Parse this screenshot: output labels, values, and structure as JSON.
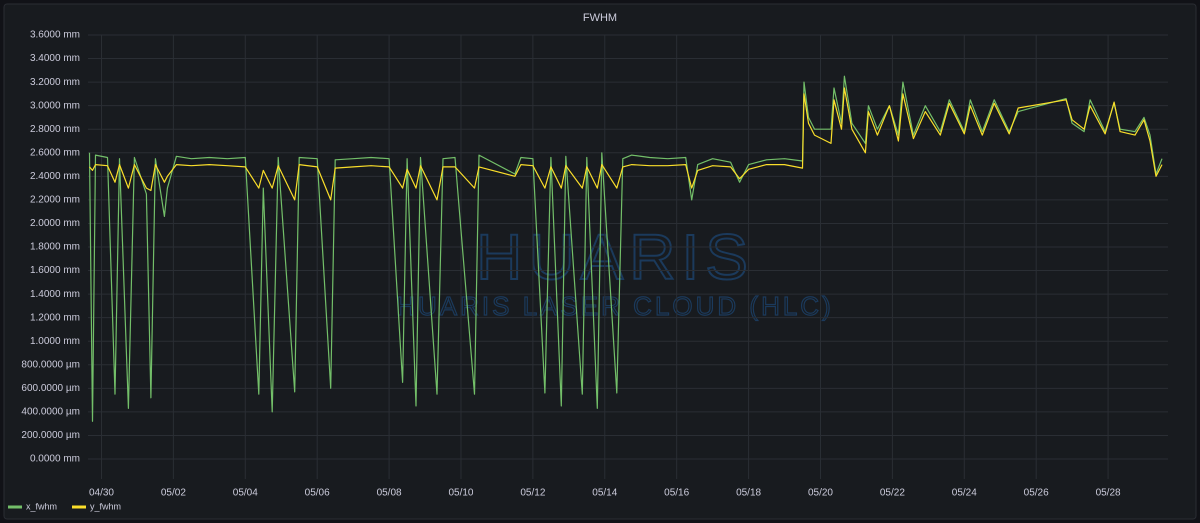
{
  "chart_data": {
    "type": "line",
    "title": "FWHM",
    "watermark": {
      "main": "HUARIS",
      "sub": "HUARIS LASER CLOUD (HLC)"
    },
    "x": [
      "04/29 16:00",
      "04/29 18:00",
      "04/29 20:00",
      "04/30 04:00",
      "04/30 09:00",
      "04/30 12:00",
      "04/30 18:00",
      "04/30 22:00",
      "05/01 06:00",
      "05/01 09:00",
      "05/01 12:00",
      "05/01 18:00",
      "05/01 20:00",
      "05/02 02:00",
      "05/02 12:00",
      "05/03 00:00",
      "05/03 12:00",
      "05/04 00:00",
      "05/04 09:00",
      "05/04 12:00",
      "05/04 18:00",
      "05/04 22:00",
      "05/05 09:00",
      "05/05 12:00",
      "05/06 00:00",
      "05/06 09:00",
      "05/06 12:00",
      "05/07 00:00",
      "05/07 12:00",
      "05/08 00:00",
      "05/08 09:00",
      "05/08 12:00",
      "05/08 18:00",
      "05/08 21:00",
      "05/09 08:00",
      "05/09 12:00",
      "05/09 20:00",
      "05/10 09:00",
      "05/10 12:00",
      "05/11 12:00",
      "05/11 16:00",
      "05/12 00:00",
      "05/12 08:00",
      "05/12 12:00",
      "05/12 19:00",
      "05/12 22:00",
      "05/13 09:00",
      "05/13 12:00",
      "05/13 19:00",
      "05/13 22:00",
      "05/14 08:00",
      "05/14 12:00",
      "05/14 18:00",
      "05/15 06:00",
      "05/15 18:00",
      "05/16 06:00",
      "05/16 10:00",
      "05/16 14:00",
      "05/17 00:00",
      "05/17 12:00",
      "05/17 18:00",
      "05/18 00:00",
      "05/18 12:00",
      "05/19 00:00",
      "05/19 12:00",
      "05/19 13:00",
      "05/19 16:00",
      "05/19 20:00",
      "05/20 07:00",
      "05/20 09:00",
      "05/20 14:00",
      "05/20 16:00",
      "05/20 21:00",
      "05/21 06:00",
      "05/21 08:00",
      "05/21 14:00",
      "05/21 22:00",
      "05/22 04:00",
      "05/22 07:00",
      "05/22 14:00",
      "05/22 22:00",
      "05/23 08:00",
      "05/23 14:00",
      "05/24 00:00",
      "05/24 04:00",
      "05/24 12:00",
      "05/24 20:00",
      "05/25 06:00",
      "05/25 12:00",
      "05/26 20:00",
      "05/27 00:00",
      "05/27 08:00",
      "05/27 12:00",
      "05/27 22:00",
      "05/28 04:00",
      "05/28 08:00",
      "05/28 18:00",
      "05/29 00:00",
      "05/29 04:00",
      "05/29 08:00",
      "05/29 12:00"
    ],
    "series": [
      {
        "name": "x_fwhm",
        "color": "#73bf69",
        "values": [
          2.6,
          0.32,
          2.58,
          2.56,
          0.55,
          2.55,
          0.43,
          2.56,
          2.25,
          0.52,
          2.55,
          2.06,
          2.3,
          2.57,
          2.55,
          2.56,
          2.55,
          2.56,
          0.55,
          2.3,
          0.4,
          2.56,
          0.57,
          2.56,
          2.55,
          0.6,
          2.54,
          2.55,
          2.56,
          2.55,
          0.65,
          2.55,
          0.45,
          2.56,
          0.55,
          2.55,
          2.56,
          0.55,
          2.58,
          2.42,
          2.56,
          2.55,
          0.56,
          2.56,
          0.45,
          2.57,
          0.55,
          2.56,
          0.43,
          2.6,
          0.56,
          2.55,
          2.58,
          2.56,
          2.55,
          2.56,
          2.2,
          2.5,
          2.55,
          2.52,
          2.35,
          2.5,
          2.54,
          2.55,
          2.53,
          3.2,
          2.9,
          2.8,
          2.8,
          3.15,
          2.85,
          3.25,
          2.85,
          2.68,
          3.0,
          2.8,
          3.0,
          2.75,
          3.2,
          2.75,
          3.0,
          2.78,
          3.05,
          2.78,
          3.05,
          2.78,
          3.05,
          2.78,
          2.95,
          3.06,
          2.85,
          2.78,
          3.05,
          2.78,
          3.02,
          2.8,
          2.78,
          2.9,
          2.75,
          2.42,
          2.55
        ]
      },
      {
        "name": "y_fwhm",
        "color": "#fade2a",
        "values": [
          2.48,
          2.45,
          2.5,
          2.49,
          2.35,
          2.5,
          2.3,
          2.5,
          2.3,
          2.28,
          2.5,
          2.35,
          2.4,
          2.5,
          2.49,
          2.5,
          2.49,
          2.48,
          2.3,
          2.45,
          2.3,
          2.49,
          2.2,
          2.5,
          2.48,
          2.2,
          2.47,
          2.48,
          2.49,
          2.48,
          2.3,
          2.46,
          2.3,
          2.49,
          2.2,
          2.48,
          2.48,
          2.3,
          2.48,
          2.4,
          2.5,
          2.49,
          2.3,
          2.48,
          2.3,
          2.49,
          2.3,
          2.48,
          2.3,
          2.5,
          2.3,
          2.48,
          2.5,
          2.49,
          2.49,
          2.5,
          2.3,
          2.45,
          2.49,
          2.48,
          2.38,
          2.46,
          2.5,
          2.5,
          2.47,
          3.1,
          2.85,
          2.75,
          2.68,
          3.05,
          2.8,
          3.15,
          2.8,
          2.6,
          2.95,
          2.75,
          3.0,
          2.7,
          3.1,
          2.72,
          2.95,
          2.75,
          3.02,
          2.76,
          3.0,
          2.75,
          3.02,
          2.76,
          2.98,
          3.05,
          2.88,
          2.8,
          3.0,
          2.76,
          3.03,
          2.78,
          2.75,
          2.88,
          2.7,
          2.4,
          2.5
        ]
      }
    ],
    "xlim": [
      "04/29 15:00",
      "05/29 16:00"
    ],
    "xticks": [
      "04/30",
      "05/02",
      "05/04",
      "05/06",
      "05/08",
      "05/10",
      "05/12",
      "05/14",
      "05/16",
      "05/18",
      "05/20",
      "05/22",
      "05/24",
      "05/26",
      "05/28"
    ],
    "ylim": [
      0,
      3.6
    ],
    "yticks": [
      {
        "value": 0,
        "label": "0.0000 mm"
      },
      {
        "value": 0.2,
        "label": "200.0000 µm"
      },
      {
        "value": 0.4,
        "label": "400.0000 µm"
      },
      {
        "value": 0.6,
        "label": "600.0000 µm"
      },
      {
        "value": 0.8,
        "label": "800.0000 µm"
      },
      {
        "value": 1,
        "label": "1.0000 mm"
      },
      {
        "value": 1.2,
        "label": "1.2000 mm"
      },
      {
        "value": 1.4,
        "label": "1.4000 mm"
      },
      {
        "value": 1.6,
        "label": "1.6000 mm"
      },
      {
        "value": 1.8,
        "label": "1.8000 mm"
      },
      {
        "value": 2,
        "label": "2.0000 mm"
      },
      {
        "value": 2.2,
        "label": "2.2000 mm"
      },
      {
        "value": 2.4,
        "label": "2.4000 mm"
      },
      {
        "value": 2.6,
        "label": "2.6000 mm"
      },
      {
        "value": 2.8,
        "label": "2.8000 mm"
      },
      {
        "value": 3,
        "label": "3.0000 mm"
      },
      {
        "value": 3.2,
        "label": "3.2000 mm"
      },
      {
        "value": 3.4,
        "label": "3.4000 mm"
      },
      {
        "value": 3.6,
        "label": "3.6000 mm"
      }
    ],
    "grid": true
  }
}
